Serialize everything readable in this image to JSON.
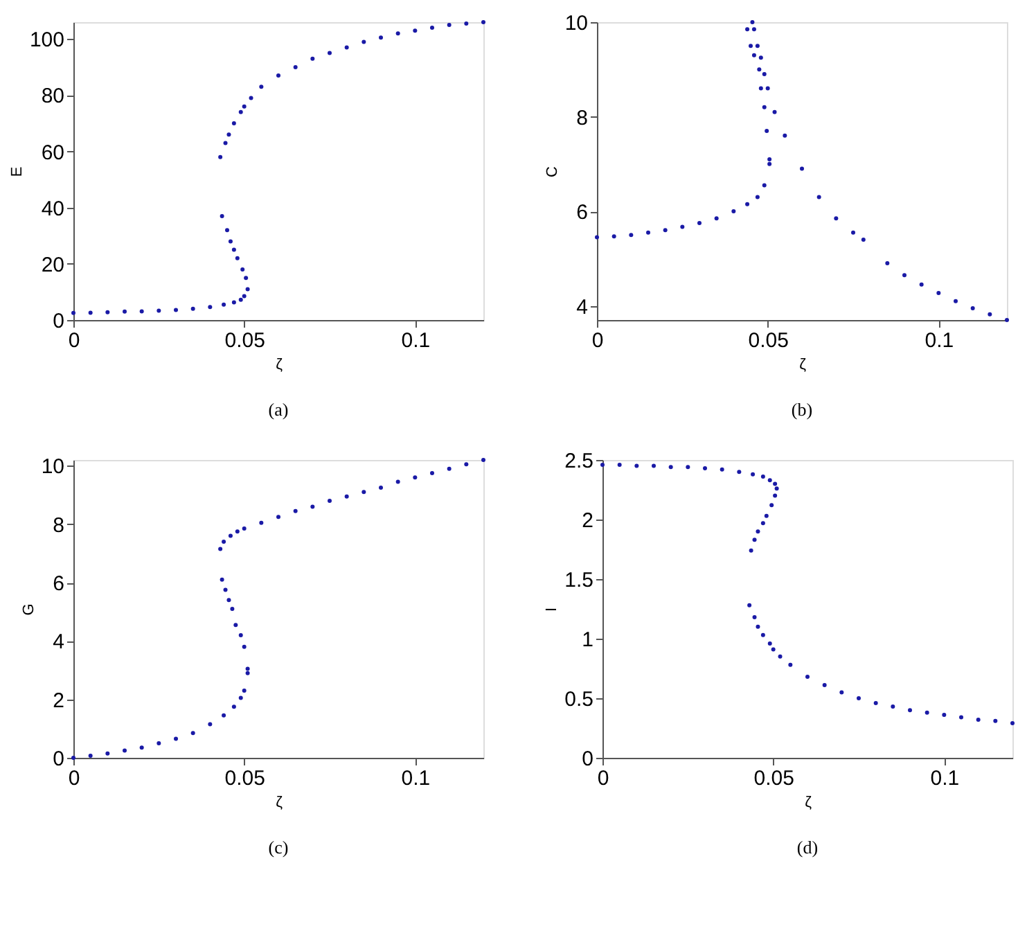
{
  "chart_data": [
    {
      "type": "scatter",
      "xlabel": "ζ",
      "ylabel": "E",
      "annotations": [
        "(a)"
      ],
      "xlim": [
        0,
        0.12
      ],
      "xticks": [
        0,
        0.05,
        0.1
      ],
      "ylim": [
        0,
        106
      ],
      "yticks": [
        0,
        20,
        40,
        60,
        80,
        100
      ],
      "grid": false,
      "marker": "circle",
      "series": [
        {
          "color": "#1a1aa6",
          "x": [
            0,
            0.005,
            0.01,
            0.015,
            0.02,
            0.025,
            0.03,
            0.035,
            0.04,
            0.044,
            0.047,
            0.049,
            0.05,
            0.051,
            0.0505,
            0.0495,
            0.048,
            0.047,
            0.046,
            0.045,
            0.0435,
            0.043,
            0.0445,
            0.0455,
            0.047,
            0.049,
            0.05,
            0.052,
            0.055,
            0.06,
            0.065,
            0.07,
            0.075,
            0.08,
            0.085,
            0.09,
            0.095,
            0.1,
            0.105,
            0.11,
            0.115,
            0.12
          ],
          "values": [
            2.5,
            2.6,
            2.8,
            3,
            3.1,
            3.3,
            3.6,
            4,
            4.6,
            5.5,
            6.3,
            7.2,
            8.5,
            11,
            15,
            18,
            22,
            25,
            28,
            32,
            37,
            58,
            63,
            66,
            70,
            74,
            76,
            79,
            83,
            87,
            90,
            93,
            95,
            97,
            99,
            100.5,
            102,
            103,
            104,
            105,
            105.5,
            106
          ]
        }
      ]
    },
    {
      "type": "scatter",
      "xlabel": "ζ",
      "ylabel": "C",
      "annotations": [
        "(b)"
      ],
      "xlim": [
        0,
        0.12
      ],
      "xticks": [
        0,
        0.05,
        0.1
      ],
      "ylim": [
        3.7,
        10
      ],
      "yticks": [
        4,
        6,
        8,
        10
      ],
      "grid": false,
      "marker": "circle",
      "series": [
        {
          "color": "#1a1aa6",
          "x": [
            0,
            0.005,
            0.01,
            0.015,
            0.02,
            0.025,
            0.03,
            0.035,
            0.04,
            0.044,
            0.047,
            0.049,
            0.0505,
            0.0505,
            0.0497,
            0.049,
            0.048,
            0.0475,
            0.046,
            0.045,
            0.044,
            0.0455,
            0.046,
            0.047,
            0.048,
            0.049,
            0.05,
            0.052,
            0.055,
            0.06,
            0.065,
            0.07,
            0.075,
            0.078,
            0.085,
            0.09,
            0.095,
            0.1,
            0.105,
            0.11,
            0.115,
            0.12
          ],
          "values": [
            5.45,
            5.47,
            5.5,
            5.55,
            5.6,
            5.67,
            5.75,
            5.85,
            6.0,
            6.15,
            6.3,
            6.55,
            7.0,
            7.1,
            7.7,
            8.2,
            8.6,
            9.0,
            9.3,
            9.5,
            9.85,
            10.0,
            9.85,
            9.5,
            9.25,
            8.9,
            8.6,
            8.1,
            7.6,
            6.9,
            6.3,
            5.85,
            5.55,
            5.4,
            4.9,
            4.65,
            4.45,
            4.27,
            4.1,
            3.95,
            3.82,
            3.7
          ]
        }
      ]
    },
    {
      "type": "scatter",
      "xlabel": "ζ",
      "ylabel": "G",
      "annotations": [
        "(c)"
      ],
      "xlim": [
        0,
        0.12
      ],
      "xticks": [
        0,
        0.05,
        0.1
      ],
      "ylim": [
        0,
        10.2
      ],
      "yticks": [
        0,
        2,
        4,
        6,
        8,
        10
      ],
      "grid": false,
      "marker": "circle",
      "series": [
        {
          "color": "#1a1aa6",
          "x": [
            0,
            0.005,
            0.01,
            0.015,
            0.02,
            0.025,
            0.03,
            0.035,
            0.04,
            0.044,
            0.047,
            0.049,
            0.05,
            0.051,
            0.051,
            0.05,
            0.049,
            0.0475,
            0.0465,
            0.0455,
            0.0445,
            0.0435,
            0.043,
            0.044,
            0.046,
            0.048,
            0.05,
            0.055,
            0.06,
            0.065,
            0.07,
            0.075,
            0.08,
            0.085,
            0.09,
            0.095,
            0.1,
            0.105,
            0.11,
            0.115,
            0.12
          ],
          "values": [
            0,
            0.07,
            0.15,
            0.25,
            0.35,
            0.5,
            0.65,
            0.85,
            1.15,
            1.45,
            1.75,
            2.05,
            2.3,
            2.9,
            3.05,
            3.8,
            4.2,
            4.55,
            5.1,
            5.4,
            5.75,
            6.1,
            7.15,
            7.4,
            7.6,
            7.75,
            7.85,
            8.05,
            8.25,
            8.45,
            8.6,
            8.8,
            8.95,
            9.1,
            9.25,
            9.45,
            9.6,
            9.75,
            9.9,
            10.05,
            10.2
          ]
        }
      ]
    },
    {
      "type": "scatter",
      "xlabel": "ζ",
      "ylabel": "I",
      "annotations": [
        "(d)"
      ],
      "xlim": [
        0,
        0.12
      ],
      "xticks": [
        0,
        0.05,
        0.1
      ],
      "ylim": [
        0,
        2.5
      ],
      "yticks": [
        0,
        0.5,
        1,
        1.5,
        2,
        2.5
      ],
      "grid": false,
      "marker": "circle",
      "series": [
        {
          "color": "#1a1aa6",
          "x": [
            0,
            0.005,
            0.01,
            0.015,
            0.02,
            0.025,
            0.03,
            0.035,
            0.04,
            0.044,
            0.047,
            0.049,
            0.0505,
            0.051,
            0.0505,
            0.0495,
            0.048,
            0.047,
            0.0455,
            0.0445,
            0.0435,
            0.043,
            0.0445,
            0.0455,
            0.047,
            0.049,
            0.05,
            0.052,
            0.055,
            0.06,
            0.065,
            0.07,
            0.075,
            0.08,
            0.085,
            0.09,
            0.095,
            0.1,
            0.105,
            0.11,
            0.115,
            0.12
          ],
          "values": [
            2.46,
            2.46,
            2.45,
            2.45,
            2.44,
            2.44,
            2.43,
            2.42,
            2.4,
            2.38,
            2.36,
            2.33,
            2.3,
            2.26,
            2.2,
            2.12,
            2.03,
            1.97,
            1.9,
            1.83,
            1.74,
            1.28,
            1.18,
            1.1,
            1.03,
            0.96,
            0.91,
            0.85,
            0.78,
            0.68,
            0.61,
            0.55,
            0.5,
            0.46,
            0.43,
            0.4,
            0.38,
            0.36,
            0.34,
            0.32,
            0.31,
            0.29
          ]
        }
      ]
    }
  ]
}
